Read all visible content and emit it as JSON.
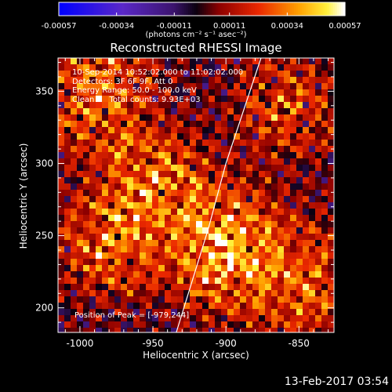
{
  "chart_data": {
    "type": "heatmap",
    "title": "Reconstructed RHESSI Image",
    "xlabel": "Heliocentric X (arcsec)",
    "ylabel": "Heliocentric Y (arcsec)",
    "xlim": [
      -1015,
      -826
    ],
    "ylim": [
      183,
      373
    ],
    "x_ticks": [
      -1000,
      -950,
      -900,
      -850
    ],
    "y_ticks": [
      200,
      250,
      300,
      350
    ],
    "colorbar": {
      "ticks": [
        -0.00057,
        -0.00034,
        -0.00011,
        0.00011,
        0.00034,
        0.00057
      ],
      "tick_labels": [
        "-0.00057",
        "-0.00034",
        "-0.00011",
        "0.00011",
        "0.00034",
        "0.00057"
      ],
      "unit_label": "(photons cm⁻² s⁻¹ asec⁻²)",
      "range": [
        -0.00057,
        0.00057
      ]
    },
    "info_lines": [
      "10-Sep-2014 10:52:02.000 to 11:02:02.000",
      "Detectors: 3F 6F 9F, Att 0",
      "Energy Range: 50.0 - 100.0 keV",
      "Clean      Total counts: 9.93E+03"
    ],
    "peak_label": "Position of Peak = [-979,244]",
    "peak_position": [
      -979,
      244
    ],
    "limb_curve": [
      [
        -934,
        183
      ],
      [
        -912,
        255
      ],
      [
        -900,
        300
      ],
      [
        -876,
        373
      ]
    ],
    "bright_sources": [
      {
        "x": -947,
        "y": 290,
        "intensity": 0.00057
      },
      {
        "x": -979,
        "y": 244,
        "intensity": 0.00057
      },
      {
        "x": -905,
        "y": 228,
        "intensity": 0.0005
      },
      {
        "x": -895,
        "y": 255,
        "intensity": 0.00045
      },
      {
        "x": -858,
        "y": 340,
        "intensity": 0.00045
      },
      {
        "x": -995,
        "y": 335,
        "intensity": 0.0004
      },
      {
        "x": -980,
        "y": 370,
        "intensity": 0.00035
      },
      {
        "x": -840,
        "y": 230,
        "intensity": 0.00035
      },
      {
        "x": -850,
        "y": 195,
        "intensity": 0.0003
      }
    ]
  },
  "footer_date": "13-Feb-2017 03:54"
}
